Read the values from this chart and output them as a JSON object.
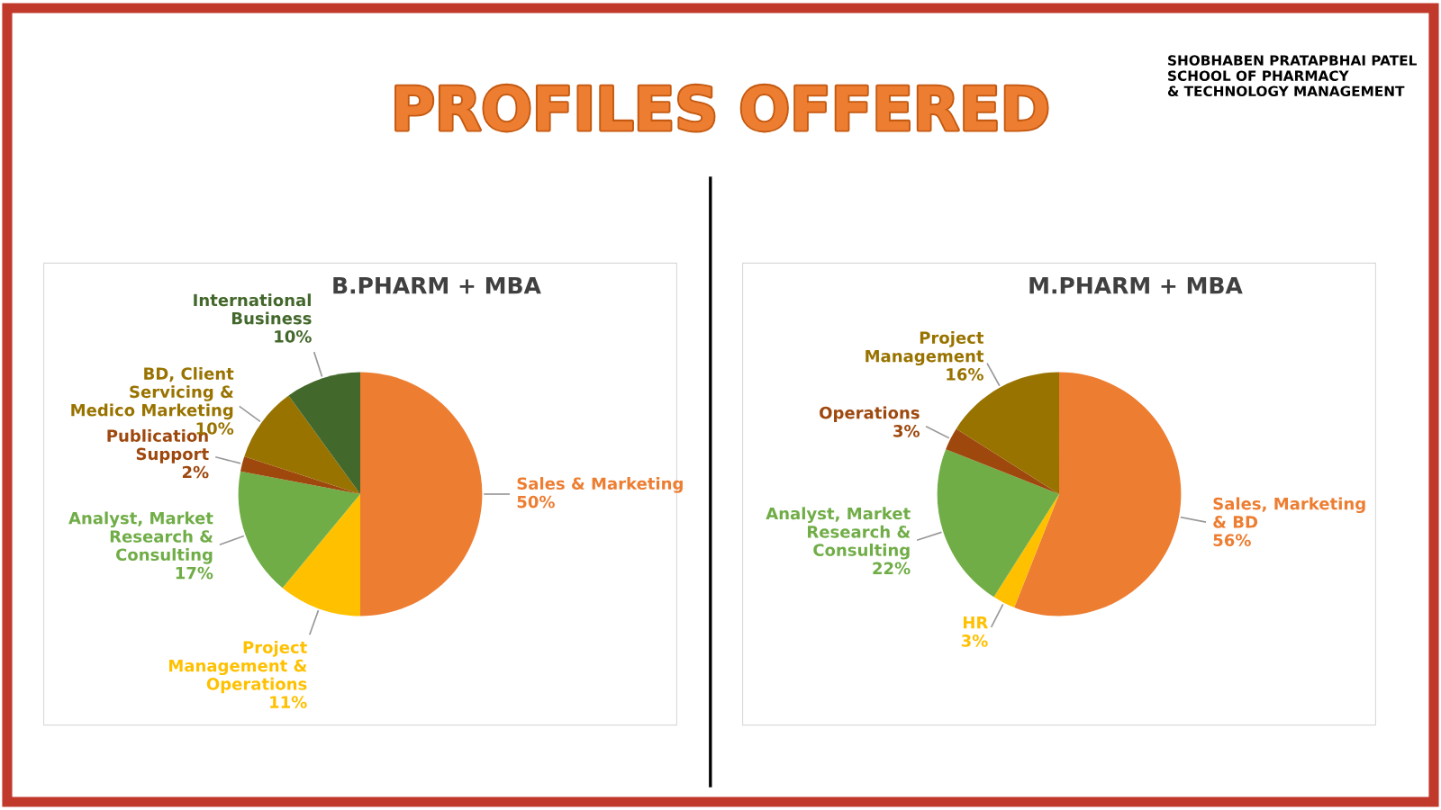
{
  "chart_data": [
    {
      "type": "pie",
      "title": "B.PHARM + MBA",
      "annotations": [
        "PROFILES OFFERED",
        "SHOBHABEN PRATAPBHAI PATEL\nSCHOOL OF PHARMACY\n& TECHNOLOGY MANAGEMENT"
      ],
      "categories": [
        "Sales & Marketing",
        "Project\nManagement &\nOperations",
        "Analyst, Market\nResearch &\nConsulting",
        "Publication\nSupport",
        "BD, Client\nServicing &\nMedico Marketing",
        "International\nBusiness"
      ],
      "values": [
        50,
        11,
        17,
        2,
        10,
        10
      ],
      "colors": [
        "#ed7d31",
        "#ffc000",
        "#70ad47",
        "#9e480e",
        "#997300",
        "#43682b"
      ],
      "value_labels": [
        "50%",
        "11%",
        "17%",
        "2%",
        "10%",
        "10%"
      ]
    },
    {
      "type": "pie",
      "title": "M.PHARM + MBA",
      "categories": [
        "Sales, Marketing\n& BD",
        "HR",
        "Analyst, Market\nResearch &\nConsulting",
        "Operations",
        "Project\nManagement"
      ],
      "values": [
        56,
        3,
        22,
        3,
        16
      ],
      "colors": [
        "#ed7d31",
        "#ffc000",
        "#70ad47",
        "#9e480e",
        "#997300"
      ],
      "value_labels": [
        "56%",
        "3%",
        "22%",
        "3%",
        "16%"
      ]
    }
  ]
}
